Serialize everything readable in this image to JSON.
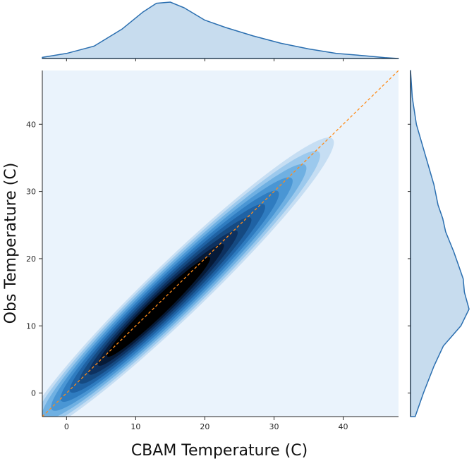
{
  "chart_data": {
    "type": "kde-joint",
    "xlabel": "CBAM Temperature (C)",
    "ylabel": "Obs Temperature (C)",
    "xlim": [
      -3.5,
      48
    ],
    "ylim": [
      -3.5,
      48
    ],
    "x_ticks": [
      0,
      10,
      20,
      30,
      40
    ],
    "y_ticks": [
      0,
      10,
      20,
      30,
      40
    ],
    "reference_line": {
      "style": "dashed",
      "slope": 1,
      "intercept": 0,
      "color": "#ff8c1a"
    },
    "kde_2d": {
      "peak": [
        13,
        12.5
      ],
      "levels": 10,
      "colormap": [
        "#eaf3fc",
        "#c6def3",
        "#9cc9ed",
        "#6fb0e2",
        "#4a96d4",
        "#2f7cc0",
        "#1f62a4",
        "#154a82",
        "#0d3160",
        "#061a37",
        "#000000"
      ]
    },
    "marginal_x": {
      "x": [
        -3.5,
        0,
        4,
        8,
        11,
        13,
        15,
        17,
        20,
        23,
        27,
        31,
        35,
        39,
        43,
        46,
        48
      ],
      "density": [
        0.02,
        0.09,
        0.22,
        0.52,
        0.82,
        0.98,
        1.0,
        0.9,
        0.68,
        0.55,
        0.4,
        0.27,
        0.17,
        0.09,
        0.05,
        0.015,
        0.0
      ]
    },
    "marginal_y": {
      "y": [
        -3.5,
        0,
        4,
        7,
        10,
        12.5,
        15,
        17,
        19,
        21,
        24,
        26,
        28,
        31,
        34,
        37,
        40,
        44,
        48
      ],
      "density": [
        0.08,
        0.22,
        0.4,
        0.56,
        0.86,
        1.0,
        0.92,
        0.9,
        0.82,
        0.74,
        0.6,
        0.55,
        0.47,
        0.4,
        0.3,
        0.2,
        0.1,
        0.03,
        0.0
      ]
    },
    "colors": {
      "background": "#eaf3fc",
      "marginal_fill": "#c7dcee",
      "marginal_line": "#2b6fb0"
    }
  }
}
